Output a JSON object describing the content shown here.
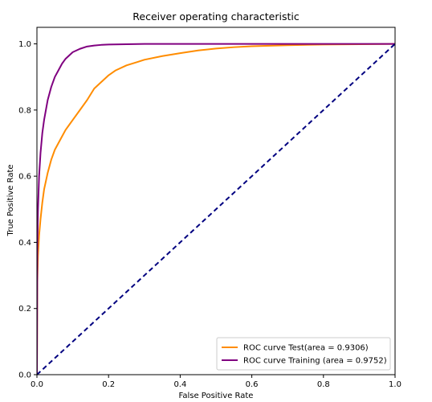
{
  "chart_data": {
    "type": "line",
    "title": "Receiver operating characteristic",
    "xlabel": "False Positive Rate",
    "ylabel": "True Positive Rate",
    "xlim": [
      0.0,
      1.0
    ],
    "ylim": [
      0.0,
      1.05
    ],
    "xticks": [
      0.0,
      0.2,
      0.4,
      0.6,
      0.8,
      1.0
    ],
    "xtick_labels": [
      "0.0",
      "0.2",
      "0.4",
      "0.6",
      "0.8",
      "1.0"
    ],
    "yticks": [
      0.0,
      0.2,
      0.4,
      0.6,
      0.8,
      1.0
    ],
    "ytick_labels": [
      "0.0",
      "0.2",
      "0.4",
      "0.6",
      "0.8",
      "1.0"
    ],
    "grid": false,
    "legend_position": "lower right",
    "series": [
      {
        "name": "ROC curve Test(area = 0.9306)",
        "color": "#ff8c00",
        "style": "solid",
        "x": [
          0,
          0.001,
          0.003,
          0.006,
          0.01,
          0.015,
          0.02,
          0.03,
          0.04,
          0.05,
          0.06,
          0.07,
          0.08,
          0.09,
          0.1,
          0.12,
          0.14,
          0.16,
          0.18,
          0.2,
          0.22,
          0.25,
          0.28,
          0.3,
          0.35,
          0.4,
          0.45,
          0.5,
          0.55,
          0.6,
          0.7,
          0.8,
          0.9,
          1.0
        ],
        "y": [
          0,
          0.28,
          0.36,
          0.42,
          0.47,
          0.52,
          0.56,
          0.61,
          0.65,
          0.68,
          0.7,
          0.72,
          0.74,
          0.755,
          0.77,
          0.8,
          0.83,
          0.865,
          0.885,
          0.905,
          0.92,
          0.935,
          0.945,
          0.952,
          0.963,
          0.972,
          0.98,
          0.986,
          0.99,
          0.993,
          0.996,
          0.998,
          0.999,
          1.0
        ]
      },
      {
        "name": "ROC curve Training (area = 0.9752)",
        "color": "#800080",
        "style": "solid",
        "x": [
          0,
          0.001,
          0.003,
          0.006,
          0.01,
          0.015,
          0.02,
          0.03,
          0.04,
          0.05,
          0.06,
          0.07,
          0.08,
          0.09,
          0.1,
          0.12,
          0.14,
          0.16,
          0.18,
          0.2,
          0.25,
          0.3,
          0.4,
          0.5,
          0.6,
          0.8,
          1.0
        ],
        "y": [
          0,
          0.38,
          0.5,
          0.6,
          0.67,
          0.73,
          0.77,
          0.83,
          0.87,
          0.9,
          0.92,
          0.94,
          0.955,
          0.965,
          0.975,
          0.985,
          0.992,
          0.995,
          0.997,
          0.998,
          0.999,
          1.0,
          1.0,
          1.0,
          1.0,
          1.0,
          1.0
        ]
      },
      {
        "name": "",
        "color": "#000080",
        "style": "dashed",
        "x": [
          0,
          1
        ],
        "y": [
          0,
          1
        ]
      }
    ]
  }
}
